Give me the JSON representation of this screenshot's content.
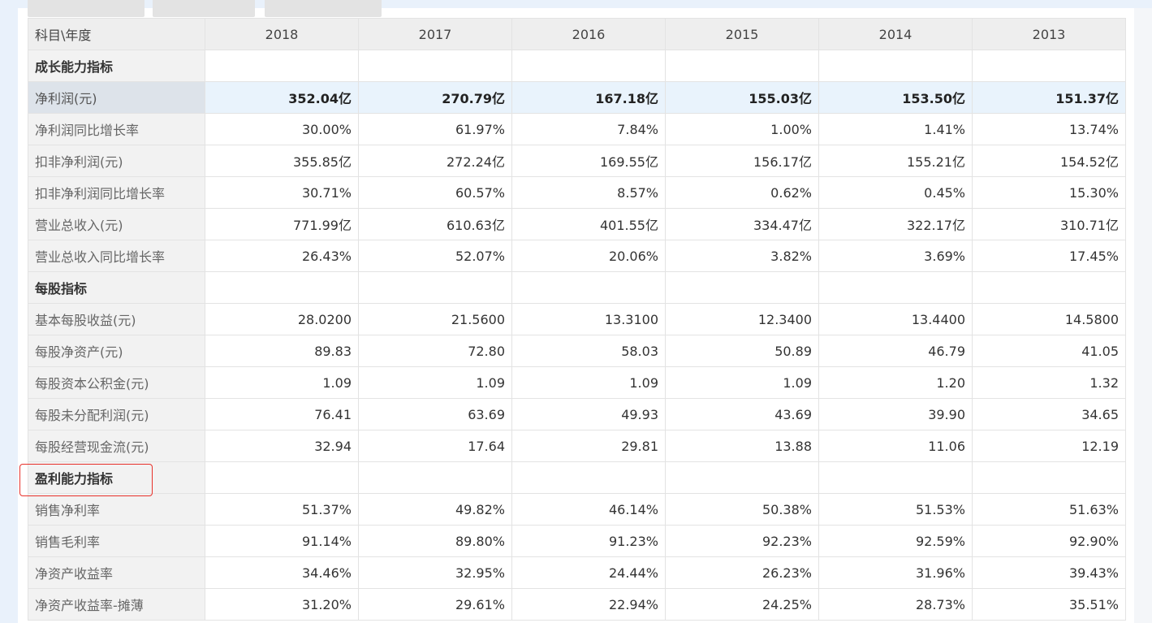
{
  "table": {
    "corner_label": "科目\\年度",
    "years": [
      "2018",
      "2017",
      "2016",
      "2015",
      "2014",
      "2013"
    ],
    "rows": [
      {
        "type": "section",
        "label": "成长能力指标",
        "values": [
          "",
          "",
          "",
          "",
          "",
          ""
        ]
      },
      {
        "type": "highlight",
        "label": "净利润(元)",
        "values": [
          "352.04亿",
          "270.79亿",
          "167.18亿",
          "155.03亿",
          "153.50亿",
          "151.37亿"
        ]
      },
      {
        "type": "data",
        "label": "净利润同比增长率",
        "values": [
          "30.00%",
          "61.97%",
          "7.84%",
          "1.00%",
          "1.41%",
          "13.74%"
        ]
      },
      {
        "type": "data",
        "label": "扣非净利润(元)",
        "values": [
          "355.85亿",
          "272.24亿",
          "169.55亿",
          "156.17亿",
          "155.21亿",
          "154.52亿"
        ]
      },
      {
        "type": "data",
        "label": "扣非净利润同比增长率",
        "values": [
          "30.71%",
          "60.57%",
          "8.57%",
          "0.62%",
          "0.45%",
          "15.30%"
        ]
      },
      {
        "type": "data",
        "label": "营业总收入(元)",
        "values": [
          "771.99亿",
          "610.63亿",
          "401.55亿",
          "334.47亿",
          "322.17亿",
          "310.71亿"
        ]
      },
      {
        "type": "data",
        "label": "营业总收入同比增长率",
        "values": [
          "26.43%",
          "52.07%",
          "20.06%",
          "3.82%",
          "3.69%",
          "17.45%"
        ]
      },
      {
        "type": "section",
        "label": "每股指标",
        "values": [
          "",
          "",
          "",
          "",
          "",
          ""
        ]
      },
      {
        "type": "data",
        "label": "基本每股收益(元)",
        "values": [
          "28.0200",
          "21.5600",
          "13.3100",
          "12.3400",
          "13.4400",
          "14.5800"
        ]
      },
      {
        "type": "data",
        "label": "每股净资产(元)",
        "values": [
          "89.83",
          "72.80",
          "58.03",
          "50.89",
          "46.79",
          "41.05"
        ]
      },
      {
        "type": "data",
        "label": "每股资本公积金(元)",
        "values": [
          "1.09",
          "1.09",
          "1.09",
          "1.09",
          "1.20",
          "1.32"
        ]
      },
      {
        "type": "data",
        "label": "每股未分配利润(元)",
        "values": [
          "76.41",
          "63.69",
          "49.93",
          "43.69",
          "39.90",
          "34.65"
        ]
      },
      {
        "type": "data",
        "label": "每股经营现金流(元)",
        "values": [
          "32.94",
          "17.64",
          "29.81",
          "13.88",
          "11.06",
          "12.19"
        ]
      },
      {
        "type": "section",
        "label": "盈利能力指标",
        "values": [
          "",
          "",
          "",
          "",
          "",
          ""
        ]
      },
      {
        "type": "data",
        "label": "销售净利率",
        "values": [
          "51.37%",
          "49.82%",
          "46.14%",
          "50.38%",
          "51.53%",
          "51.63%"
        ]
      },
      {
        "type": "data",
        "label": "销售毛利率",
        "values": [
          "91.14%",
          "89.80%",
          "91.23%",
          "92.23%",
          "92.59%",
          "92.90%"
        ]
      },
      {
        "type": "data",
        "label": "净资产收益率",
        "values": [
          "34.46%",
          "32.95%",
          "24.44%",
          "26.23%",
          "31.96%",
          "39.43%"
        ]
      },
      {
        "type": "data",
        "label": "净资产收益率-摊薄",
        "values": [
          "31.20%",
          "29.61%",
          "22.94%",
          "24.25%",
          "28.73%",
          "35.51%"
        ]
      }
    ]
  },
  "annotation": {
    "highlight_color": "#e8312a"
  }
}
